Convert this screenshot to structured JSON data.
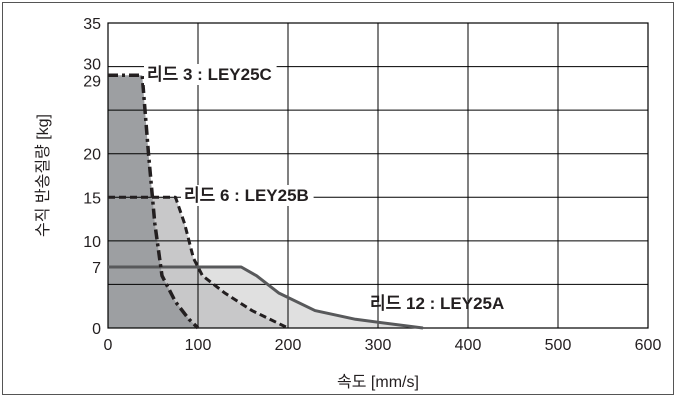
{
  "chart_data": {
    "type": "area",
    "xlabel": "속도 [mm/s]",
    "ylabel": "수직 반송질량 [kg]",
    "xlim": [
      0,
      600
    ],
    "ylim": [
      0,
      35
    ],
    "x_ticks": [
      "0",
      "100",
      "200",
      "300",
      "400",
      "500",
      "600"
    ],
    "y_ticks": [
      {
        "value": 0,
        "label": "0"
      },
      {
        "value": 7,
        "label": "7"
      },
      {
        "value": 10,
        "label": "10"
      },
      {
        "value": 15,
        "label": "15"
      },
      {
        "value": 20,
        "label": "20"
      },
      {
        "value": 29,
        "label": "29"
      },
      {
        "value": 30,
        "label": "30"
      },
      {
        "value": 35,
        "label": "35"
      }
    ],
    "grid": true,
    "series": [
      {
        "name": "리드 12 : LEY25A",
        "line_style": "solid",
        "fill": "#e0e0e0",
        "stroke": "#58595b",
        "points": [
          [
            0,
            7
          ],
          [
            148,
            7
          ],
          [
            165,
            6
          ],
          [
            190,
            4
          ],
          [
            230,
            2
          ],
          [
            275,
            1
          ],
          [
            350,
            0
          ]
        ]
      },
      {
        "name": "리드 6 : LEY25B",
        "line_style": "dashed",
        "fill": "#c8c8c9",
        "stroke": "#231f20",
        "points": [
          [
            0,
            15
          ],
          [
            75,
            15
          ],
          [
            85,
            12
          ],
          [
            95,
            8
          ],
          [
            105,
            6
          ],
          [
            130,
            4
          ],
          [
            160,
            2
          ],
          [
            200,
            0
          ]
        ]
      },
      {
        "name": "리드 3 : LEY25C",
        "line_style": "dashdot",
        "fill": "#9d9fa2",
        "stroke": "#231f20",
        "points": [
          [
            0,
            29
          ],
          [
            38,
            29
          ],
          [
            45,
            20
          ],
          [
            52,
            12
          ],
          [
            60,
            6
          ],
          [
            75,
            3
          ],
          [
            90,
            1
          ],
          [
            100,
            0
          ]
        ]
      }
    ],
    "annotations": [
      {
        "text": "리드 3 : LEY25C",
        "series": 2
      },
      {
        "text": "리드 6 : LEY25B",
        "series": 1
      },
      {
        "text": "리드 12 : LEY25A",
        "series": 0
      }
    ]
  }
}
